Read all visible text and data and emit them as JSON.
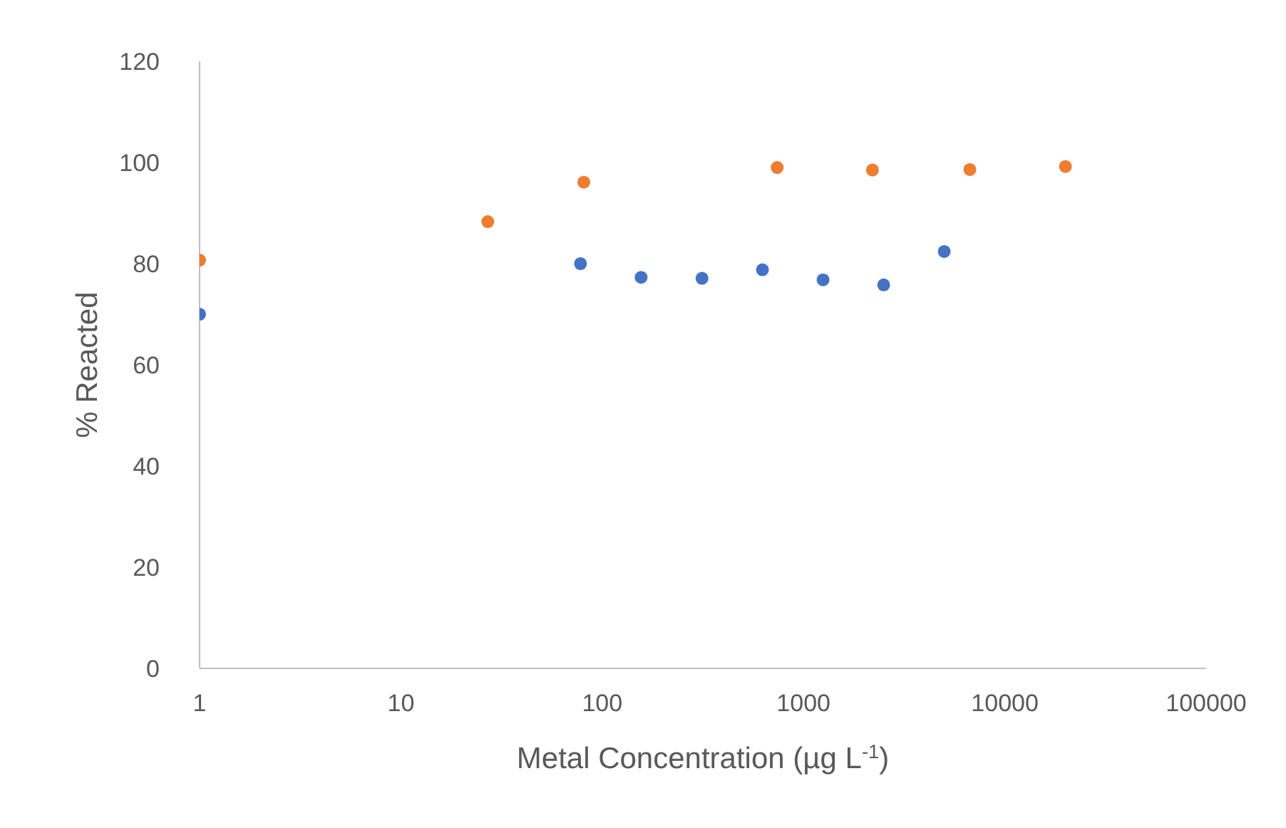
{
  "chart_data": {
    "type": "scatter",
    "xlabel": "Metal Concentration (µg L$^{-1}$)",
    "ylabel": "% Reacted",
    "log": "x",
    "xlim": [
      1,
      100000
    ],
    "xticks": [
      1,
      10,
      100,
      1000,
      10000,
      100000
    ],
    "ylim": [
      0,
      120
    ],
    "yticks": [
      0,
      20,
      40,
      60,
      80,
      100,
      120
    ],
    "marker": "circle",
    "grid": false,
    "legend": false,
    "series": [
      {
        "color": "#4472c4",
        "x": [
          1,
          78,
          156,
          313,
          625,
          1250,
          2500,
          5000
        ],
        "values": [
          70,
          80,
          77.3,
          77.1,
          78.8,
          76.8,
          75.8,
          82.4
        ]
      },
      {
        "color": "#ed7d31",
        "x": [
          1,
          27,
          81,
          740,
          2200,
          6700,
          20000
        ],
        "values": [
          80.7,
          88.3,
          96.1,
          99,
          98.5,
          98.6,
          99.2
        ]
      }
    ]
  }
}
